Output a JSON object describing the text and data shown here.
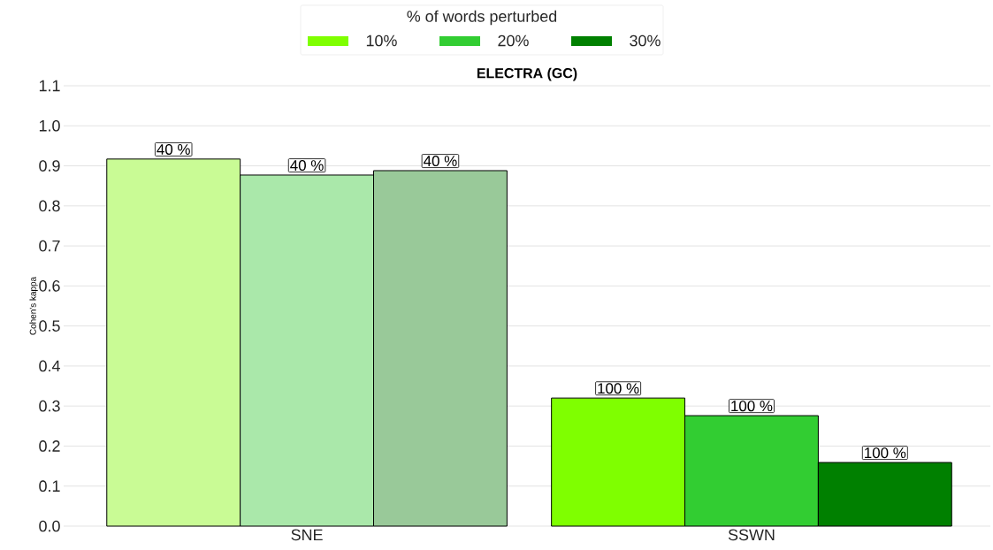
{
  "chart_data": {
    "type": "bar",
    "title": "ELECTRA (GC)",
    "ylabel": "Cohen's kappa",
    "legend_title": "% of words perturbed",
    "categories": [
      "SNE",
      "SSWN"
    ],
    "series": [
      {
        "name": "10%",
        "color": "#7fff00",
        "colors": [
          "#c9fb95",
          "#7fff00"
        ],
        "values": [
          0.917,
          0.32
        ]
      },
      {
        "name": "20%",
        "color": "#32cd32",
        "colors": [
          "#aae8aa",
          "#32cd32"
        ],
        "values": [
          0.877,
          0.276
        ]
      },
      {
        "name": "30%",
        "color": "#008000",
        "colors": [
          "#99c999",
          "#008000"
        ],
        "values": [
          0.888,
          0.159
        ]
      }
    ],
    "annotations": [
      "40 %",
      "40 %",
      "40 %",
      "100 %",
      "100 %",
      "100 %"
    ],
    "ylim": [
      0,
      1.1
    ],
    "yticks": [
      {
        "value": 0,
        "label": "0.0"
      },
      0.1,
      0.2,
      0.3,
      0.4,
      0.5,
      0.6,
      0.7,
      0.8,
      0.9,
      {
        "value": 1,
        "label": "1.0"
      },
      1.1
    ],
    "grid": "y",
    "legend": "top"
  }
}
